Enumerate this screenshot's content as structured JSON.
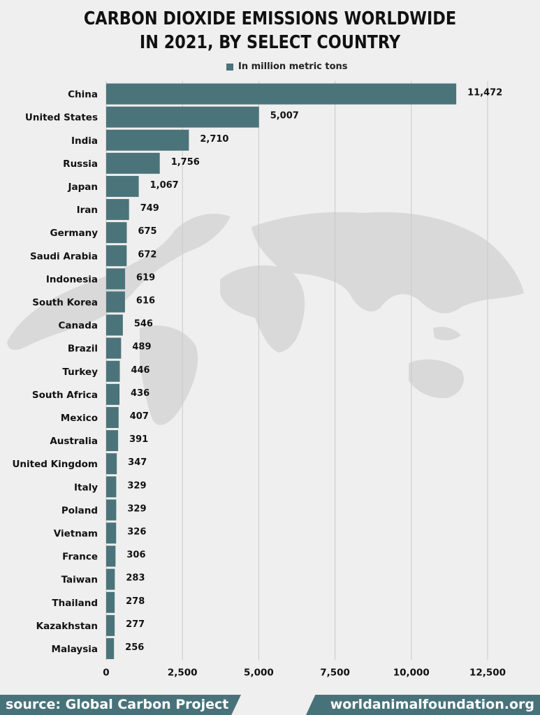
{
  "page": {
    "title": "CARBON DIOXIDE EMISSIONS WORLDWIDE IN 2021, BY SELECT COUNTRY",
    "source": "source: Global Carbon Project",
    "website": "worldanimalfoundation.org"
  },
  "colors": {
    "bar": "#4b737a",
    "background": "#efefef",
    "footer": "#48727a",
    "grid": "#c9c9c9",
    "map": "#d8d8d8"
  },
  "chart_data": {
    "type": "bar",
    "orientation": "horizontal",
    "title": "CARBON DIOXIDE EMISSIONS WORLDWIDE IN 2021, BY SELECT COUNTRY",
    "legend": "top-center",
    "xlim": [
      0,
      12500
    ],
    "ticks": [
      0,
      2500,
      5000,
      7500,
      10000,
      12500
    ],
    "tick_labels": [
      "0",
      "2,500",
      "5,000",
      "7,500",
      "10,000",
      "12,500"
    ],
    "grid": true,
    "categories": [
      "China",
      "United States",
      "India",
      "Russia",
      "Japan",
      "Iran",
      "Germany",
      "Saudi Arabia",
      "Indonesia",
      "South Korea",
      "Canada",
      "Brazil",
      "Turkey",
      "South Africa",
      "Mexico",
      "Australia",
      "United Kingdom",
      "Italy",
      "Poland",
      "Vietnam",
      "France",
      "Taiwan",
      "Thailand",
      "Kazakhstan",
      "Malaysia"
    ],
    "series": [
      {
        "name": "In million metric tons",
        "values": [
          11472,
          5007,
          2710,
          1756,
          1067,
          749,
          675,
          672,
          619,
          616,
          546,
          489,
          446,
          436,
          407,
          391,
          347,
          329,
          329,
          326,
          306,
          283,
          278,
          277,
          256
        ],
        "value_labels": [
          "11,472",
          "5,007",
          "2,710",
          "1,756",
          "1,067",
          "749",
          "675",
          "672",
          "619",
          "616",
          "546",
          "489",
          "446",
          "436",
          "407",
          "391",
          "347",
          "329",
          "329",
          "326",
          "306",
          "283",
          "278",
          "277",
          "256"
        ]
      }
    ]
  }
}
